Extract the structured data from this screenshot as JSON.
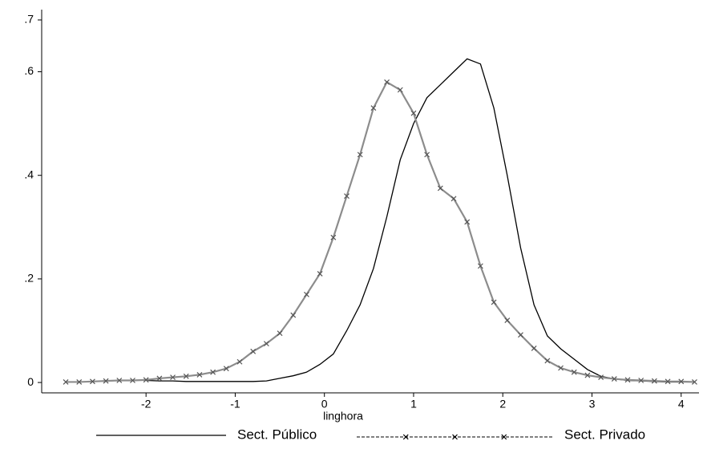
{
  "chart_data": {
    "type": "line",
    "x_label": "linghora",
    "x": [
      -2.9,
      -2.75,
      -2.6,
      -2.45,
      -2.3,
      -2.15,
      -2.0,
      -1.85,
      -1.7,
      -1.55,
      -1.4,
      -1.25,
      -1.1,
      -0.95,
      -0.8,
      -0.65,
      -0.5,
      -0.35,
      -0.2,
      -0.05,
      0.1,
      0.25,
      0.4,
      0.55,
      0.7,
      0.85,
      1.0,
      1.15,
      1.3,
      1.45,
      1.6,
      1.75,
      1.9,
      2.05,
      2.2,
      2.35,
      2.5,
      2.65,
      2.8,
      2.95,
      3.1,
      3.25,
      3.4,
      3.55,
      3.7,
      3.85,
      4.0,
      4.15
    ],
    "series": [
      {
        "name": "Sect. Público",
        "color": "#000000",
        "marker": false,
        "values": [
          null,
          null,
          null,
          null,
          null,
          null,
          0.004,
          0.003,
          0.003,
          0.002,
          0.002,
          0.002,
          0.002,
          0.002,
          0.002,
          0.003,
          0.008,
          0.013,
          0.02,
          0.035,
          0.055,
          0.1,
          0.15,
          0.22,
          0.32,
          0.43,
          0.5,
          0.55,
          0.575,
          0.6,
          0.625,
          0.615,
          0.53,
          0.4,
          0.26,
          0.15,
          0.09,
          0.065,
          0.045,
          0.025,
          0.012,
          0.007,
          0.004,
          0.003,
          0.002,
          0.001,
          0.001,
          0.001
        ]
      },
      {
        "name": "Sect. Privado",
        "color": "#8c8c8c",
        "marker": true,
        "values": [
          0.001,
          0.001,
          0.002,
          0.003,
          0.004,
          0.004,
          0.005,
          0.008,
          0.01,
          0.012,
          0.015,
          0.02,
          0.027,
          0.04,
          0.06,
          0.075,
          0.095,
          0.13,
          0.17,
          0.21,
          0.28,
          0.36,
          0.44,
          0.53,
          0.58,
          0.565,
          0.52,
          0.44,
          0.375,
          0.355,
          0.31,
          0.225,
          0.155,
          0.12,
          0.092,
          0.066,
          0.042,
          0.028,
          0.02,
          0.014,
          0.01,
          0.007,
          0.005,
          0.004,
          0.003,
          0.002,
          0.002,
          0.001
        ]
      }
    ],
    "xlim": [
      -3.17,
      4.2
    ],
    "xticks": [
      -2,
      -1,
      0,
      1,
      2,
      3,
      4
    ],
    "ylim": [
      -0.02,
      0.72
    ],
    "yticks": [
      0,
      {
        "value": 0.2,
        "label": ".2"
      },
      {
        "value": 0.4,
        "label": ".4"
      },
      {
        "value": 0.6,
        "label": ".6"
      },
      {
        "value": 0.7,
        "label": ".7"
      }
    ],
    "grid": false,
    "legend": "bottom"
  }
}
